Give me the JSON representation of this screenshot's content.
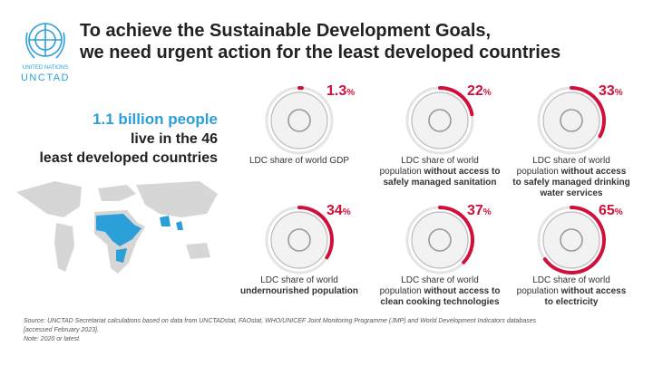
{
  "logo": {
    "line1": "UNITED NATIONS",
    "line2": "UNCTAD"
  },
  "header": {
    "title_lines": [
      "To achieve the Sustainable Development Goals,",
      "we need urgent action for the least developed countries"
    ]
  },
  "headline": {
    "highlight": "1.1 billion people",
    "line2": "live in the 46",
    "line3": "least developed countries"
  },
  "stats": [
    {
      "value": 1.3,
      "unit": "%",
      "lines": [
        [
          {
            "text": "LDC share of world GDP"
          }
        ]
      ]
    },
    {
      "value": 22,
      "unit": "%",
      "lines": [
        [
          {
            "text": "LDC share of world"
          }
        ],
        [
          {
            "text": "population "
          },
          {
            "text": "without access to",
            "bold": true
          }
        ],
        [
          {
            "text": "safely managed sanitation",
            "bold": true
          }
        ]
      ]
    },
    {
      "value": 33,
      "unit": "%",
      "lines": [
        [
          {
            "text": "LDC share of world"
          }
        ],
        [
          {
            "text": "population "
          },
          {
            "text": "without access",
            "bold": true
          }
        ],
        [
          {
            "text": "to safely managed drinking",
            "bold": true
          }
        ],
        [
          {
            "text": "water services",
            "bold": true
          }
        ]
      ]
    },
    {
      "value": 34,
      "unit": "%",
      "lines": [
        [
          {
            "text": "LDC share of world"
          }
        ],
        [
          {
            "text": "undernourished population",
            "bold": true
          }
        ]
      ]
    },
    {
      "value": 37,
      "unit": "%",
      "lines": [
        [
          {
            "text": "LDC share of world"
          }
        ],
        [
          {
            "text": "population "
          },
          {
            "text": "without access to",
            "bold": true
          }
        ],
        [
          {
            "text": "clean cooking technologies",
            "bold": true
          }
        ]
      ]
    },
    {
      "value": 65,
      "unit": "%",
      "lines": [
        [
          {
            "text": "LDC share of world"
          }
        ],
        [
          {
            "text": "population "
          },
          {
            "text": "without access",
            "bold": true
          }
        ],
        [
          {
            "text": "to electricity",
            "bold": true
          }
        ]
      ]
    }
  ],
  "footer": {
    "lines": [
      "Source: UNCTAD Secretariat calculations based on data from UNCTADstat, FAOstat, WHO/UNICEF Joint Monitoring Programme (JMP) and World Development Indicators databases",
      "[accessed February 2023].",
      "Note: 2020 or latest."
    ]
  }
}
